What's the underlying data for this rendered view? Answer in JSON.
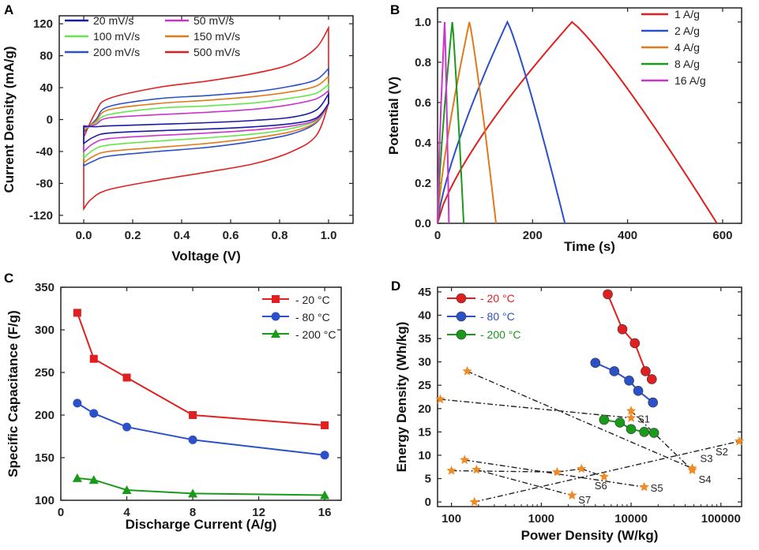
{
  "chart_data": [
    {
      "panel": "A",
      "type": "line",
      "title": "",
      "xlabel": "Voltage (V)",
      "ylabel": "Current Density (mA/g)",
      "xlim": [
        -0.1,
        1.1
      ],
      "ylim": [
        -130,
        130
      ],
      "xticks": [
        "0.0",
        "0.2",
        "0.4",
        "0.6",
        "0.8",
        "1.0"
      ],
      "yticks": [
        "-120",
        "-80",
        "-40",
        "0",
        "40",
        "80",
        "120"
      ],
      "legend": "top-left",
      "series": [
        {
          "name": "20 mV/s",
          "color": "#1a1aa6",
          "upper": [
            [
              0.0,
              -8
            ],
            [
              0.05,
              -9
            ],
            [
              0.1,
              -8
            ],
            [
              0.3,
              -6
            ],
            [
              0.5,
              -4
            ],
            [
              0.7,
              -1
            ],
            [
              0.85,
              3
            ],
            [
              0.95,
              12
            ],
            [
              1.0,
              32
            ]
          ],
          "lower": [
            [
              0.0,
              -30
            ],
            [
              0.04,
              -22
            ],
            [
              0.1,
              -17
            ],
            [
              0.3,
              -14
            ],
            [
              0.5,
              -12
            ],
            [
              0.7,
              -9
            ],
            [
              0.85,
              -5
            ],
            [
              0.95,
              2
            ],
            [
              1.0,
              20
            ]
          ]
        },
        {
          "name": "50 mV/s",
          "color": "#cc33cc",
          "upper": [
            [
              0.0,
              -10
            ],
            [
              0.05,
              -6
            ],
            [
              0.1,
              2
            ],
            [
              0.3,
              6
            ],
            [
              0.5,
              9
            ],
            [
              0.7,
              13
            ],
            [
              0.85,
              19
            ],
            [
              0.95,
              26
            ],
            [
              1.0,
              36
            ]
          ],
          "lower": [
            [
              0.0,
              -40
            ],
            [
              0.04,
              -30
            ],
            [
              0.1,
              -24
            ],
            [
              0.3,
              -20
            ],
            [
              0.5,
              -17
            ],
            [
              0.7,
              -13
            ],
            [
              0.85,
              -8
            ],
            [
              0.95,
              0
            ],
            [
              1.0,
              20
            ]
          ]
        },
        {
          "name": "100 mV/s",
          "color": "#66e64d",
          "upper": [
            [
              0.0,
              -12
            ],
            [
              0.05,
              -4
            ],
            [
              0.1,
              6
            ],
            [
              0.3,
              14
            ],
            [
              0.5,
              17
            ],
            [
              0.7,
              21
            ],
            [
              0.85,
              27
            ],
            [
              0.95,
              33
            ],
            [
              1.0,
              44
            ]
          ],
          "lower": [
            [
              0.0,
              -48
            ],
            [
              0.04,
              -38
            ],
            [
              0.1,
              -32
            ],
            [
              0.3,
              -27
            ],
            [
              0.5,
              -23
            ],
            [
              0.7,
              -18
            ],
            [
              0.85,
              -11
            ],
            [
              0.95,
              -1
            ],
            [
              1.0,
              20
            ]
          ]
        },
        {
          "name": "150 mV/s",
          "color": "#e07a1a",
          "upper": [
            [
              0.0,
              -14
            ],
            [
              0.05,
              -2
            ],
            [
              0.1,
              12
            ],
            [
              0.3,
              20
            ],
            [
              0.5,
              24
            ],
            [
              0.7,
              29
            ],
            [
              0.85,
              35
            ],
            [
              0.95,
              42
            ],
            [
              1.0,
              54
            ]
          ],
          "lower": [
            [
              0.0,
              -54
            ],
            [
              0.04,
              -46
            ],
            [
              0.1,
              -40
            ],
            [
              0.3,
              -35
            ],
            [
              0.5,
              -30
            ],
            [
              0.7,
              -23
            ],
            [
              0.85,
              -15
            ],
            [
              0.95,
              -3
            ],
            [
              1.0,
              20
            ]
          ]
        },
        {
          "name": "200 mV/s",
          "color": "#2b50c8",
          "upper": [
            [
              0.0,
              -16
            ],
            [
              0.05,
              0
            ],
            [
              0.1,
              16
            ],
            [
              0.3,
              26
            ],
            [
              0.5,
              30
            ],
            [
              0.7,
              35
            ],
            [
              0.85,
              42
            ],
            [
              0.95,
              50
            ],
            [
              1.0,
              64
            ]
          ],
          "lower": [
            [
              0.0,
              -58
            ],
            [
              0.04,
              -52
            ],
            [
              0.1,
              -46
            ],
            [
              0.3,
              -40
            ],
            [
              0.5,
              -35
            ],
            [
              0.7,
              -27
            ],
            [
              0.85,
              -18
            ],
            [
              0.95,
              -4
            ],
            [
              1.0,
              20
            ]
          ]
        },
        {
          "name": "500 mV/s",
          "color": "#e02020",
          "upper": [
            [
              0.0,
              -22
            ],
            [
              0.05,
              10
            ],
            [
              0.1,
              26
            ],
            [
              0.3,
              40
            ],
            [
              0.5,
              48
            ],
            [
              0.7,
              58
            ],
            [
              0.85,
              70
            ],
            [
              0.95,
              90
            ],
            [
              1.0,
              115
            ]
          ],
          "lower": [
            [
              0.0,
              -112
            ],
            [
              0.03,
              -100
            ],
            [
              0.1,
              -88
            ],
            [
              0.3,
              -76
            ],
            [
              0.5,
              -66
            ],
            [
              0.7,
              -55
            ],
            [
              0.85,
              -40
            ],
            [
              0.95,
              -20
            ],
            [
              1.0,
              20
            ]
          ]
        }
      ]
    },
    {
      "panel": "B",
      "type": "line",
      "title": "",
      "xlabel": "Time (s)",
      "ylabel": "Potential (V)",
      "xlim": [
        0,
        640
      ],
      "ylim": [
        0,
        1.07
      ],
      "xticks": [
        "0",
        "200",
        "400",
        "600"
      ],
      "yticks": [
        "0.0",
        "0.2",
        "0.4",
        "0.6",
        "0.8",
        "1.0"
      ],
      "legend": "top-right",
      "series": [
        {
          "name": "1 A/g",
          "color": "#e02020",
          "peak_time": 283,
          "end_time": 588
        },
        {
          "name": "2 A/g",
          "color": "#2b50c8",
          "peak_time": 147,
          "end_time": 268
        },
        {
          "name": "4 A/g",
          "color": "#e07a1a",
          "peak_time": 67,
          "end_time": 123
        },
        {
          "name": "8 A/g",
          "color": "#1a9a1a",
          "peak_time": 31,
          "end_time": 55
        },
        {
          "name": "16 A/g",
          "color": "#cc33cc",
          "peak_time": 15,
          "end_time": 24
        }
      ]
    },
    {
      "panel": "C",
      "type": "line",
      "title": "",
      "xlabel": "Discharge Current (A/g)",
      "ylabel": "Specific Capacitance (F/g)",
      "xlim": [
        0,
        17
      ],
      "ylim": [
        100,
        350
      ],
      "xticks": [
        "0",
        "4",
        "8",
        "12",
        "16"
      ],
      "yticks": [
        "100",
        "150",
        "200",
        "250",
        "300",
        "350"
      ],
      "legend": "top-right",
      "categories": [
        1,
        2,
        4,
        8,
        16
      ],
      "series": [
        {
          "name": "- 20 °C",
          "color": "#e02020",
          "marker": "square",
          "values": [
            320,
            266,
            244,
            200,
            188
          ]
        },
        {
          "name": "- 80 °C",
          "color": "#2b50c8",
          "marker": "circle",
          "values": [
            214,
            202,
            186,
            171,
            153
          ]
        },
        {
          "name": "- 200 °C",
          "color": "#1a9a1a",
          "marker": "triangle",
          "values": [
            126,
            124,
            112,
            108,
            106
          ]
        }
      ]
    },
    {
      "panel": "D",
      "type": "scatter",
      "title": "",
      "xlabel": "Power Density (W/kg)",
      "ylabel": "Energy Density (Wh/kg)",
      "xscale": "log",
      "xlim": [
        70,
        170000
      ],
      "ylim": [
        -1,
        46
      ],
      "xticks": [
        "100",
        "1000",
        "10000",
        "100000"
      ],
      "yticks": [
        "0",
        "5",
        "10",
        "15",
        "20",
        "25",
        "30",
        "35",
        "40",
        "45"
      ],
      "legend": "top-left",
      "series": [
        {
          "name": "- 20 °C",
          "color": "#e02020",
          "x": [
            5500,
            8000,
            11000,
            14500,
            17000
          ],
          "y": [
            44.5,
            37,
            34,
            28,
            26.3
          ]
        },
        {
          "name": "- 80 °C",
          "color": "#2b50c8",
          "x": [
            4000,
            6500,
            9500,
            12000,
            17500
          ],
          "y": [
            29.8,
            28,
            26,
            23.8,
            21.3
          ]
        },
        {
          "name": "- 200 °C",
          "color": "#1a9a1a",
          "x": [
            5000,
            7500,
            10000,
            14000,
            18000
          ],
          "y": [
            17.6,
            17,
            15.6,
            15,
            14.8
          ]
        }
      ],
      "references": [
        {
          "label": "S1",
          "points": [
            [
              75,
              22
            ],
            [
              10000,
              18
            ]
          ]
        },
        {
          "label": "S2",
          "points": [
            [
              180,
              0
            ],
            [
              160000,
              13
            ]
          ]
        },
        {
          "label": "S3",
          "points": [
            [
              150,
              28
            ],
            [
              48000,
              7.2
            ]
          ]
        },
        {
          "label": "S4",
          "points": [
            [
              10000,
              19.5
            ],
            [
              48000,
              6.8
            ]
          ]
        },
        {
          "label": "S5",
          "points": [
            [
              140,
              9
            ],
            [
              14000,
              3.2
            ]
          ]
        },
        {
          "label": "S6",
          "points": [
            [
              100,
              6.7
            ],
            [
              1500,
              6.4
            ],
            [
              2800,
              7.1
            ],
            [
              5000,
              5.4
            ]
          ]
        },
        {
          "label": "S7",
          "points": [
            [
              190,
              6.9
            ],
            [
              2200,
              1.4
            ]
          ]
        }
      ]
    }
  ]
}
